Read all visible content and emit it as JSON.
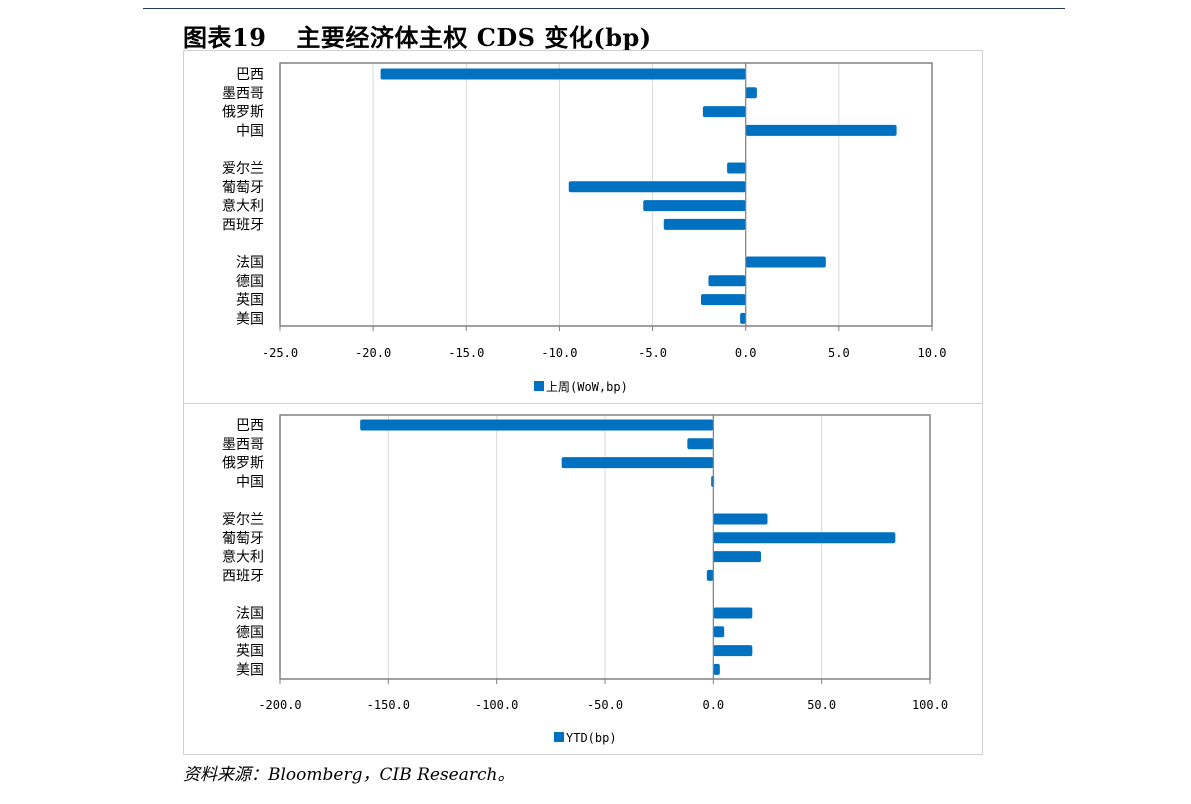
{
  "figure": {
    "number": "图表19",
    "title": "主要经济体主权 CDS 变化(bp)"
  },
  "source": "资料来源：Bloomberg，CIB Research。",
  "colors": {
    "bar": "#0070c0",
    "grid": "#d9d9d9",
    "axis": "#808080"
  },
  "chart_data": [
    {
      "type": "bar",
      "orientation": "horizontal",
      "categories": [
        "巴西",
        "墨西哥",
        "俄罗斯",
        "中国",
        "爱尔兰",
        "葡萄牙",
        "意大利",
        "西班牙",
        "法国",
        "德国",
        "英国",
        "美国"
      ],
      "groups": [
        4,
        4,
        4
      ],
      "series": [
        {
          "name": "上周(WoW,bp)",
          "values": [
            -19.6,
            0.6,
            -2.3,
            8.1,
            -1.0,
            -9.5,
            -5.5,
            -4.4,
            4.3,
            -2.0,
            -2.4,
            -0.3
          ]
        }
      ],
      "xlim": [
        -25,
        10
      ],
      "xticks": [
        "-25.0",
        "-20.0",
        "-15.0",
        "-10.0",
        "-5.0",
        "0.0",
        "5.0",
        "10.0"
      ],
      "xtick_values": [
        -25,
        -20,
        -15,
        -10,
        -5,
        0,
        5,
        10
      ],
      "grid": true,
      "legend_position": "bottom"
    },
    {
      "type": "bar",
      "orientation": "horizontal",
      "categories": [
        "巴西",
        "墨西哥",
        "俄罗斯",
        "中国",
        "爱尔兰",
        "葡萄牙",
        "意大利",
        "西班牙",
        "法国",
        "德国",
        "英国",
        "美国"
      ],
      "groups": [
        4,
        4,
        4
      ],
      "series": [
        {
          "name": "YTD(bp)",
          "values": [
            -163,
            -12,
            -70,
            -1,
            25,
            84,
            22,
            -3,
            18,
            5,
            18,
            3
          ]
        }
      ],
      "xlim": [
        -200,
        100
      ],
      "xticks": [
        "-200.0",
        "-150.0",
        "-100.0",
        "-50.0",
        "0.0",
        "50.0",
        "100.0"
      ],
      "xtick_values": [
        -200,
        -150,
        -100,
        -50,
        0,
        50,
        100
      ],
      "grid": true,
      "legend_position": "bottom"
    }
  ]
}
